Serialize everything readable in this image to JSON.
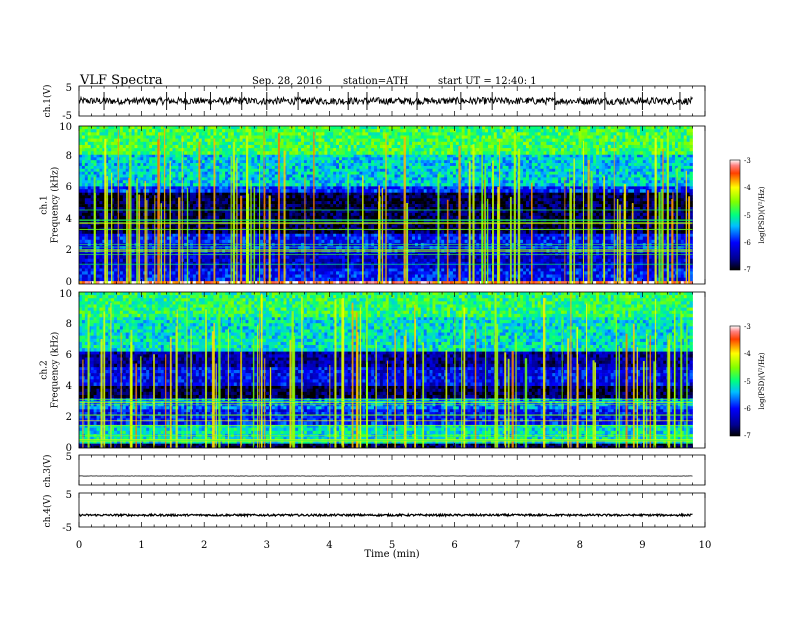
{
  "header": {
    "title": "VLF  Spectra",
    "date": "Sep. 28, 2016",
    "station": "station=ATH",
    "start": "start  UT  =    12:40: 1"
  },
  "chart_data": [
    {
      "type": "line",
      "id": "ch1-waveform",
      "ylabel": "ch.1(V)",
      "ylim": [
        -5,
        5
      ],
      "ytick_labels": [
        "5",
        "-5"
      ],
      "xlim": [
        0,
        10
      ],
      "data_end_min": 9.8,
      "baseline": 0,
      "noise_amplitude": 1.2,
      "spikes_min": [
        0.4,
        1.4,
        1.7,
        2.1,
        2.6,
        3.0,
        3.5,
        4.3,
        4.6,
        5.4,
        6.1,
        6.6,
        7.6,
        8.4,
        9.0,
        9.6
      ]
    },
    {
      "type": "heatmap",
      "id": "ch1-spectrogram",
      "ylabel": "ch.1\nFrequency  (kHz)",
      "ylim": [
        0,
        10
      ],
      "ytick_labels": [
        "0",
        "2",
        "4",
        "6",
        "8",
        "10"
      ],
      "xlim": [
        0,
        10
      ],
      "data_end_min": 9.8,
      "colorbar": {
        "label": "log(PSD)(V²/Hz)",
        "range": [
          -7,
          -3
        ],
        "tick_labels": [
          "-3",
          "-4",
          "-5",
          "-6",
          "-7"
        ]
      },
      "bands": [
        {
          "from_khz": 0.0,
          "to_khz": 0.2,
          "log_psd": -3.3
        },
        {
          "from_khz": 0.2,
          "to_khz": 1.0,
          "log_psd": -6.0
        },
        {
          "from_khz": 1.0,
          "to_khz": 2.0,
          "log_psd": -6.3
        },
        {
          "from_khz": 2.0,
          "to_khz": 3.2,
          "log_psd": -6.0
        },
        {
          "from_khz": 3.2,
          "to_khz": 5.8,
          "log_psd": -6.8
        },
        {
          "from_khz": 5.8,
          "to_khz": 6.2,
          "log_psd": -5.9
        },
        {
          "from_khz": 6.2,
          "to_khz": 8.2,
          "log_psd": -5.3
        },
        {
          "from_khz": 8.2,
          "to_khz": 10.0,
          "log_psd": -4.8
        }
      ]
    },
    {
      "type": "heatmap",
      "id": "ch2-spectrogram",
      "ylabel": "ch.2\nFrequency  (kHz)",
      "ylim": [
        0,
        10
      ],
      "ytick_labels": [
        "0",
        "2",
        "4",
        "6",
        "8",
        "10"
      ],
      "xlim": [
        0,
        10
      ],
      "data_end_min": 9.8,
      "colorbar": {
        "label": "log(PSD)(V²/Hz)",
        "range": [
          -7,
          -3
        ],
        "tick_labels": [
          "-3",
          "-4",
          "-5",
          "-6",
          "-7"
        ]
      },
      "bands": [
        {
          "from_khz": 0.0,
          "to_khz": 0.3,
          "log_psd": -6.8
        },
        {
          "from_khz": 0.3,
          "to_khz": 1.5,
          "log_psd": -5.2
        },
        {
          "from_khz": 1.5,
          "to_khz": 2.5,
          "log_psd": -6.0
        },
        {
          "from_khz": 2.5,
          "to_khz": 3.2,
          "log_psd": -5.6
        },
        {
          "from_khz": 3.2,
          "to_khz": 4.0,
          "log_psd": -6.8
        },
        {
          "from_khz": 4.0,
          "to_khz": 5.2,
          "log_psd": -6.1
        },
        {
          "from_khz": 5.2,
          "to_khz": 6.2,
          "log_psd": -6.5
        },
        {
          "from_khz": 6.2,
          "to_khz": 8.4,
          "log_psd": -5.2
        },
        {
          "from_khz": 8.4,
          "to_khz": 10.0,
          "log_psd": -4.9
        }
      ]
    },
    {
      "type": "line",
      "id": "ch3-waveform",
      "ylabel": "ch.3(V)",
      "ylim": [
        -5,
        5
      ],
      "ytick_labels": [
        "5"
      ],
      "xlim": [
        0,
        10
      ],
      "data_end_min": 9.8,
      "baseline": -2.0,
      "noise_amplitude": 0.05,
      "spikes_min": [
        1.4,
        8.2
      ]
    },
    {
      "type": "line",
      "id": "ch4-waveform",
      "ylabel": "ch.4(V)",
      "ylim": [
        -5,
        5
      ],
      "ytick_labels": [
        "5",
        "-5"
      ],
      "xlim": [
        0,
        10
      ],
      "data_end_min": 9.8,
      "baseline": -1.5,
      "noise_amplitude": 0.3,
      "spikes_min": []
    }
  ],
  "xaxis": {
    "label": "Time  (min)",
    "tick_labels": [
      "0",
      "1",
      "2",
      "3",
      "4",
      "5",
      "6",
      "7",
      "8",
      "9",
      "10"
    ]
  }
}
